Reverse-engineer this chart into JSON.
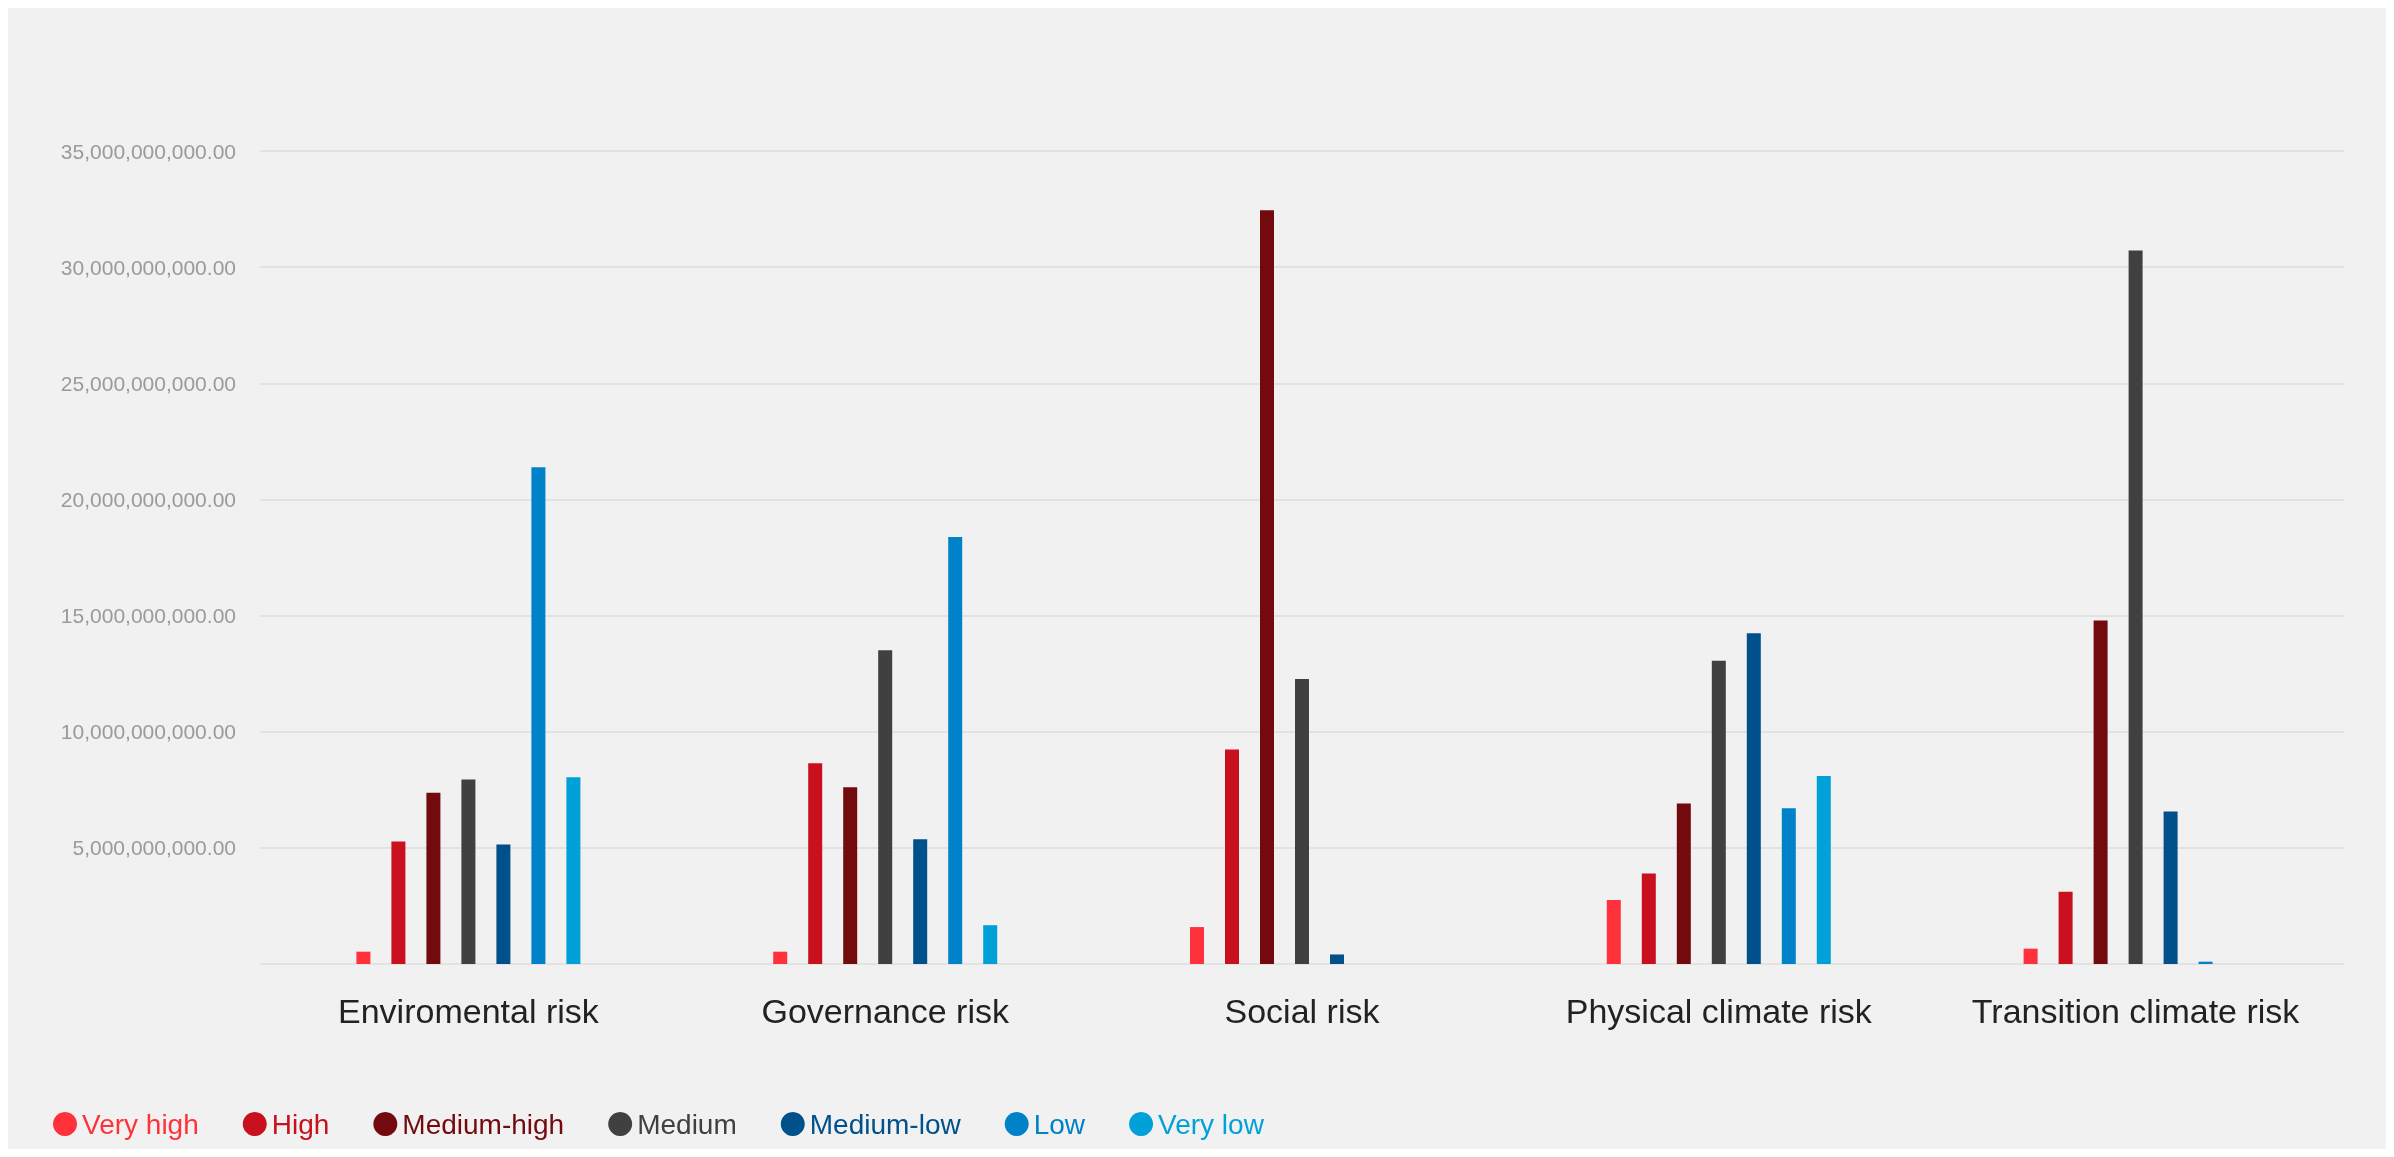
{
  "chart_data": {
    "type": "bar",
    "categories": [
      "Enviromental risk",
      "Governance risk",
      "Social risk",
      "Physical climate risk",
      "Transition climate risk"
    ],
    "series": [
      {
        "name": "Very high",
        "color": "#ff323c",
        "values": [
          530000000,
          530000000,
          1590000000,
          2760000000,
          660000000
        ]
      },
      {
        "name": "High",
        "color": "#c8101e",
        "values": [
          5270000000,
          8640000000,
          9230000000,
          3900000000,
          3110000000
        ]
      },
      {
        "name": "Medium-high",
        "color": "#720a0e",
        "values": [
          7370000000,
          7610000000,
          32450000000,
          6910000000,
          14790000000
        ]
      },
      {
        "name": "Medium",
        "color": "#404040",
        "values": [
          7940000000,
          13510000000,
          12270000000,
          13060000000,
          30720000000
        ]
      },
      {
        "name": "Medium-low",
        "color": "#00508c",
        "values": [
          5140000000,
          5370000000,
          410000000,
          14240000000,
          6570000000
        ]
      },
      {
        "name": "Low",
        "color": "#0082c8",
        "values": [
          21390000000,
          18380000000,
          null,
          6700000000,
          100000000
        ]
      },
      {
        "name": "Very low",
        "color": "#00a0d8",
        "values": [
          8040000000,
          1670000000,
          null,
          8090000000,
          null
        ]
      }
    ],
    "ylim": [
      0,
      35000000000
    ],
    "yticks": [
      {
        "value": 0,
        "label": null
      },
      {
        "value": 5000000000,
        "label": "5,000,000,000.00"
      },
      {
        "value": 10000000000,
        "label": "10,000,000,000.00"
      },
      {
        "value": 15000000000,
        "label": "15,000,000,000.00"
      },
      {
        "value": 20000000000,
        "label": "20,000,000,000.00"
      },
      {
        "value": 25000000000,
        "label": "25,000,000,000.00"
      },
      {
        "value": 30000000000,
        "label": "30,000,000,000.00"
      },
      {
        "value": 35000000000,
        "label": "35,000,000,000.00"
      }
    ],
    "grid": "y",
    "legend": "bottom left"
  }
}
